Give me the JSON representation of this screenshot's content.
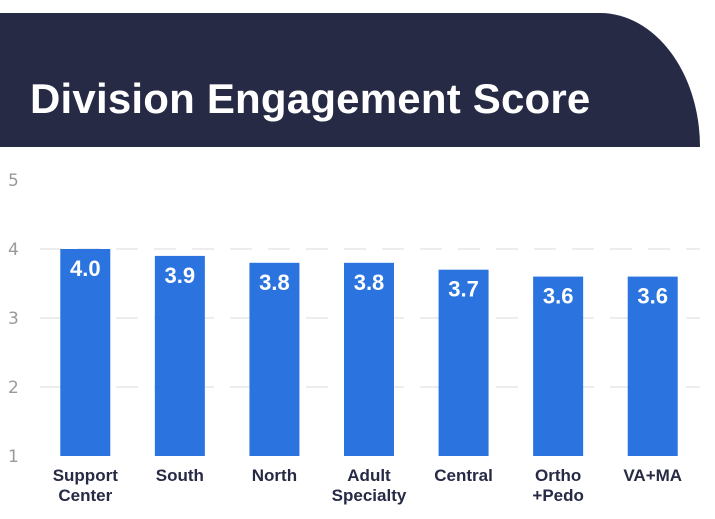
{
  "chart_data": {
    "type": "bar",
    "title": "Division Engagement Score",
    "xlabel": "",
    "ylabel": "",
    "ylim": [
      1,
      5
    ],
    "yticks": [
      1,
      2,
      3,
      4,
      5
    ],
    "grid": true,
    "categories": [
      [
        "Support",
        "Center"
      ],
      [
        "South"
      ],
      [
        "North"
      ],
      [
        "Adult",
        "Specialty"
      ],
      [
        "Central"
      ],
      [
        "Ortho",
        "+Pedo"
      ],
      [
        "VA+MA"
      ]
    ],
    "values": [
      4.0,
      3.9,
      3.8,
      3.8,
      3.7,
      3.6,
      3.6
    ],
    "data_labels": [
      "4.0",
      "3.9",
      "3.8",
      "3.8",
      "3.7",
      "3.6",
      "3.6"
    ],
    "bar_color": "#2b74e0"
  },
  "colors": {
    "banner": "#262a45",
    "bar": "#2b74e0",
    "tick": "#9a9a9a",
    "category_label": "#262a45"
  }
}
